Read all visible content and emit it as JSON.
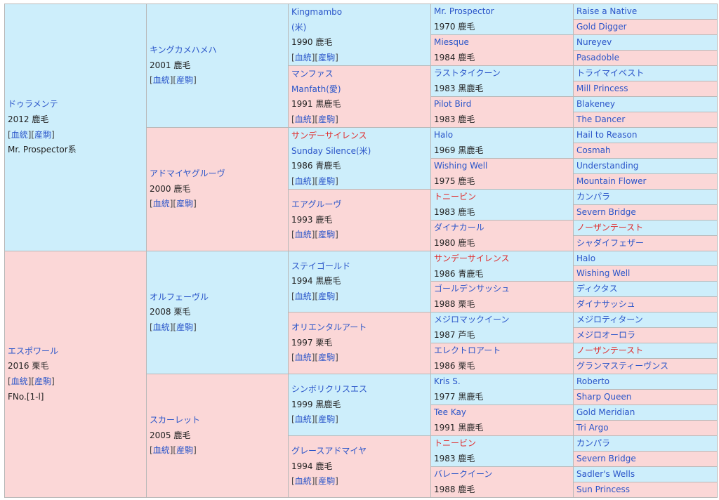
{
  "links": {
    "pedigree": "血統",
    "foals": "産駒"
  },
  "gen1": [
    {
      "name": "ドゥラメンテ",
      "info": "2012 鹿毛",
      "extra": "Mr. Prospector系",
      "male": true
    },
    {
      "name": "エスポワール",
      "info": "2016 栗毛",
      "extra": "FNo.[1-l]",
      "male": false
    }
  ],
  "gen2": [
    {
      "name": "キングカメハメハ",
      "info": "2001 鹿毛",
      "male": true
    },
    {
      "name": "アドマイヤグルーヴ",
      "info": "2000 鹿毛",
      "male": false
    },
    {
      "name": "オルフェーヴル",
      "info": "2008 栗毛",
      "male": true
    },
    {
      "name": "スカーレット",
      "info": "2005 鹿毛",
      "male": false
    }
  ],
  "gen3": [
    {
      "name": "Kingmambo",
      "eng": "(米)",
      "info": "1990 鹿毛",
      "male": true,
      "hl": false
    },
    {
      "name": "マンファス",
      "eng": "Manfath(愛)",
      "info": "1991 黒鹿毛",
      "male": false,
      "hl": false
    },
    {
      "name": "サンデーサイレンス",
      "eng": "Sunday Silence(米)",
      "info": "1986 青鹿毛",
      "male": true,
      "hl": true
    },
    {
      "name": "エアグルーヴ",
      "info": "1993 鹿毛",
      "male": false,
      "hl": false
    },
    {
      "name": "ステイゴールド",
      "info": "1994 黒鹿毛",
      "male": true,
      "hl": false
    },
    {
      "name": "オリエンタルアート",
      "info": "1997 栗毛",
      "male": false,
      "hl": false
    },
    {
      "name": "シンボリクリスエス",
      "info": "1999 黒鹿毛",
      "male": true,
      "hl": false
    },
    {
      "name": "グレースアドマイヤ",
      "info": "1994 鹿毛",
      "male": false,
      "hl": false
    }
  ],
  "gen4": [
    {
      "name": "Mr. Prospector",
      "info": "1970 鹿毛",
      "male": true,
      "hl": false
    },
    {
      "name": "Miesque",
      "info": "1984 鹿毛",
      "male": false,
      "hl": false
    },
    {
      "name": "ラストタイクーン",
      "info": "1983 黒鹿毛",
      "male": true,
      "hl": false
    },
    {
      "name": "Pilot Bird",
      "info": "1983 鹿毛",
      "male": false,
      "hl": false
    },
    {
      "name": "Halo",
      "info": "1969 黒鹿毛",
      "male": true,
      "hl": false
    },
    {
      "name": "Wishing Well",
      "info": "1975 鹿毛",
      "male": false,
      "hl": false
    },
    {
      "name": "トニービン",
      "info": "1983 鹿毛",
      "male": true,
      "hl": true
    },
    {
      "name": "ダイナカール",
      "info": "1980 鹿毛",
      "male": false,
      "hl": false
    },
    {
      "name": "サンデーサイレンス",
      "info": "1986 青鹿毛",
      "male": true,
      "hl": true
    },
    {
      "name": "ゴールデンサッシュ",
      "info": "1988 栗毛",
      "male": false,
      "hl": false
    },
    {
      "name": "メジロマックイーン",
      "info": "1987 芦毛",
      "male": true,
      "hl": false
    },
    {
      "name": "エレクトロアート",
      "info": "1986 栗毛",
      "male": false,
      "hl": false
    },
    {
      "name": "Kris S.",
      "info": "1977 黒鹿毛",
      "male": true,
      "hl": false
    },
    {
      "name": "Tee Kay",
      "info": "1991 黒鹿毛",
      "male": false,
      "hl": false
    },
    {
      "name": "トニービン",
      "info": "1983 鹿毛",
      "male": true,
      "hl": true
    },
    {
      "name": "バレークイーン",
      "info": "1988 鹿毛",
      "male": false,
      "hl": false
    }
  ],
  "gen5": [
    {
      "name": "Raise a Native",
      "male": true,
      "hl": false
    },
    {
      "name": "Gold Digger",
      "male": false,
      "hl": false
    },
    {
      "name": "Nureyev",
      "male": true,
      "hl": false
    },
    {
      "name": "Pasadoble",
      "male": false,
      "hl": false
    },
    {
      "name": "トライマイベスト",
      "male": true,
      "hl": false
    },
    {
      "name": "Mill Princess",
      "male": false,
      "hl": false
    },
    {
      "name": "Blakeney",
      "male": true,
      "hl": false
    },
    {
      "name": "The Dancer",
      "male": false,
      "hl": false
    },
    {
      "name": "Hail to Reason",
      "male": true,
      "hl": false
    },
    {
      "name": "Cosmah",
      "male": false,
      "hl": false
    },
    {
      "name": "Understanding",
      "male": true,
      "hl": false
    },
    {
      "name": "Mountain Flower",
      "male": false,
      "hl": false
    },
    {
      "name": "カンパラ",
      "male": true,
      "hl": false
    },
    {
      "name": "Severn Bridge",
      "male": false,
      "hl": false
    },
    {
      "name": "ノーザンテースト",
      "male": true,
      "hl": true
    },
    {
      "name": "シャダイフェザー",
      "male": false,
      "hl": false
    },
    {
      "name": "Halo",
      "male": true,
      "hl": false
    },
    {
      "name": "Wishing Well",
      "male": false,
      "hl": false
    },
    {
      "name": "ディクタス",
      "male": true,
      "hl": false
    },
    {
      "name": "ダイナサッシュ",
      "male": false,
      "hl": false
    },
    {
      "name": "メジロティターン",
      "male": true,
      "hl": false
    },
    {
      "name": "メジロオーロラ",
      "male": false,
      "hl": false
    },
    {
      "name": "ノーザンテースト",
      "male": true,
      "hl": true
    },
    {
      "name": "グランマスティーヴンス",
      "male": false,
      "hl": false
    },
    {
      "name": "Roberto",
      "male": true,
      "hl": false
    },
    {
      "name": "Sharp Queen",
      "male": false,
      "hl": false
    },
    {
      "name": "Gold Meridian",
      "male": true,
      "hl": false
    },
    {
      "name": "Tri Argo",
      "male": false,
      "hl": false
    },
    {
      "name": "カンパラ",
      "male": true,
      "hl": false
    },
    {
      "name": "Severn Bridge",
      "male": false,
      "hl": false
    },
    {
      "name": "Sadler's Wells",
      "male": true,
      "hl": false
    },
    {
      "name": "Sun Princess",
      "male": false,
      "hl": false
    }
  ],
  "colors": {
    "male_bg": "#cdeefb",
    "female_bg": "#fbd7d7",
    "link": "#2a55c9",
    "highlight": "#e02b2b",
    "border": "#b8b8b8"
  }
}
